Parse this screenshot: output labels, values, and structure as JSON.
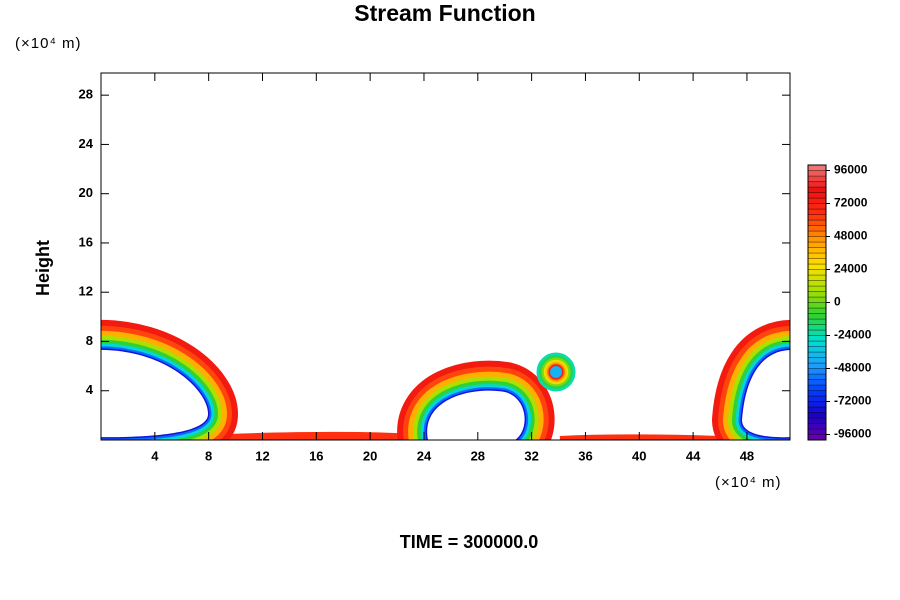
{
  "chart_data": {
    "type": "contour",
    "title": "Stream Function",
    "y_label": "Height",
    "x_unit": "(×10⁴ m)",
    "y_unit": "(×10⁴ m)",
    "footer": "TIME = 300000.0",
    "xlim": [
      0,
      51.2
    ],
    "ylim": [
      0,
      29.8
    ],
    "xticks": [
      4,
      8,
      12,
      16,
      20,
      24,
      28,
      32,
      36,
      40,
      44,
      48
    ],
    "yticks": [
      4,
      8,
      12,
      16,
      20,
      24,
      28
    ],
    "colorbar": {
      "clim": [
        -100000,
        100000
      ],
      "step": 4000,
      "ticks": [
        96000,
        72000,
        48000,
        24000,
        0,
        -24000,
        -48000,
        -72000,
        -96000
      ],
      "colors": [
        "#6a00a8",
        "#1a00c8",
        "#0040ff",
        "#1fa0ff",
        "#00e0d0",
        "#30d030",
        "#a8e000",
        "#ffe000",
        "#ff9a00",
        "#ff3010",
        "#ee1010",
        "#f08080"
      ]
    }
  }
}
